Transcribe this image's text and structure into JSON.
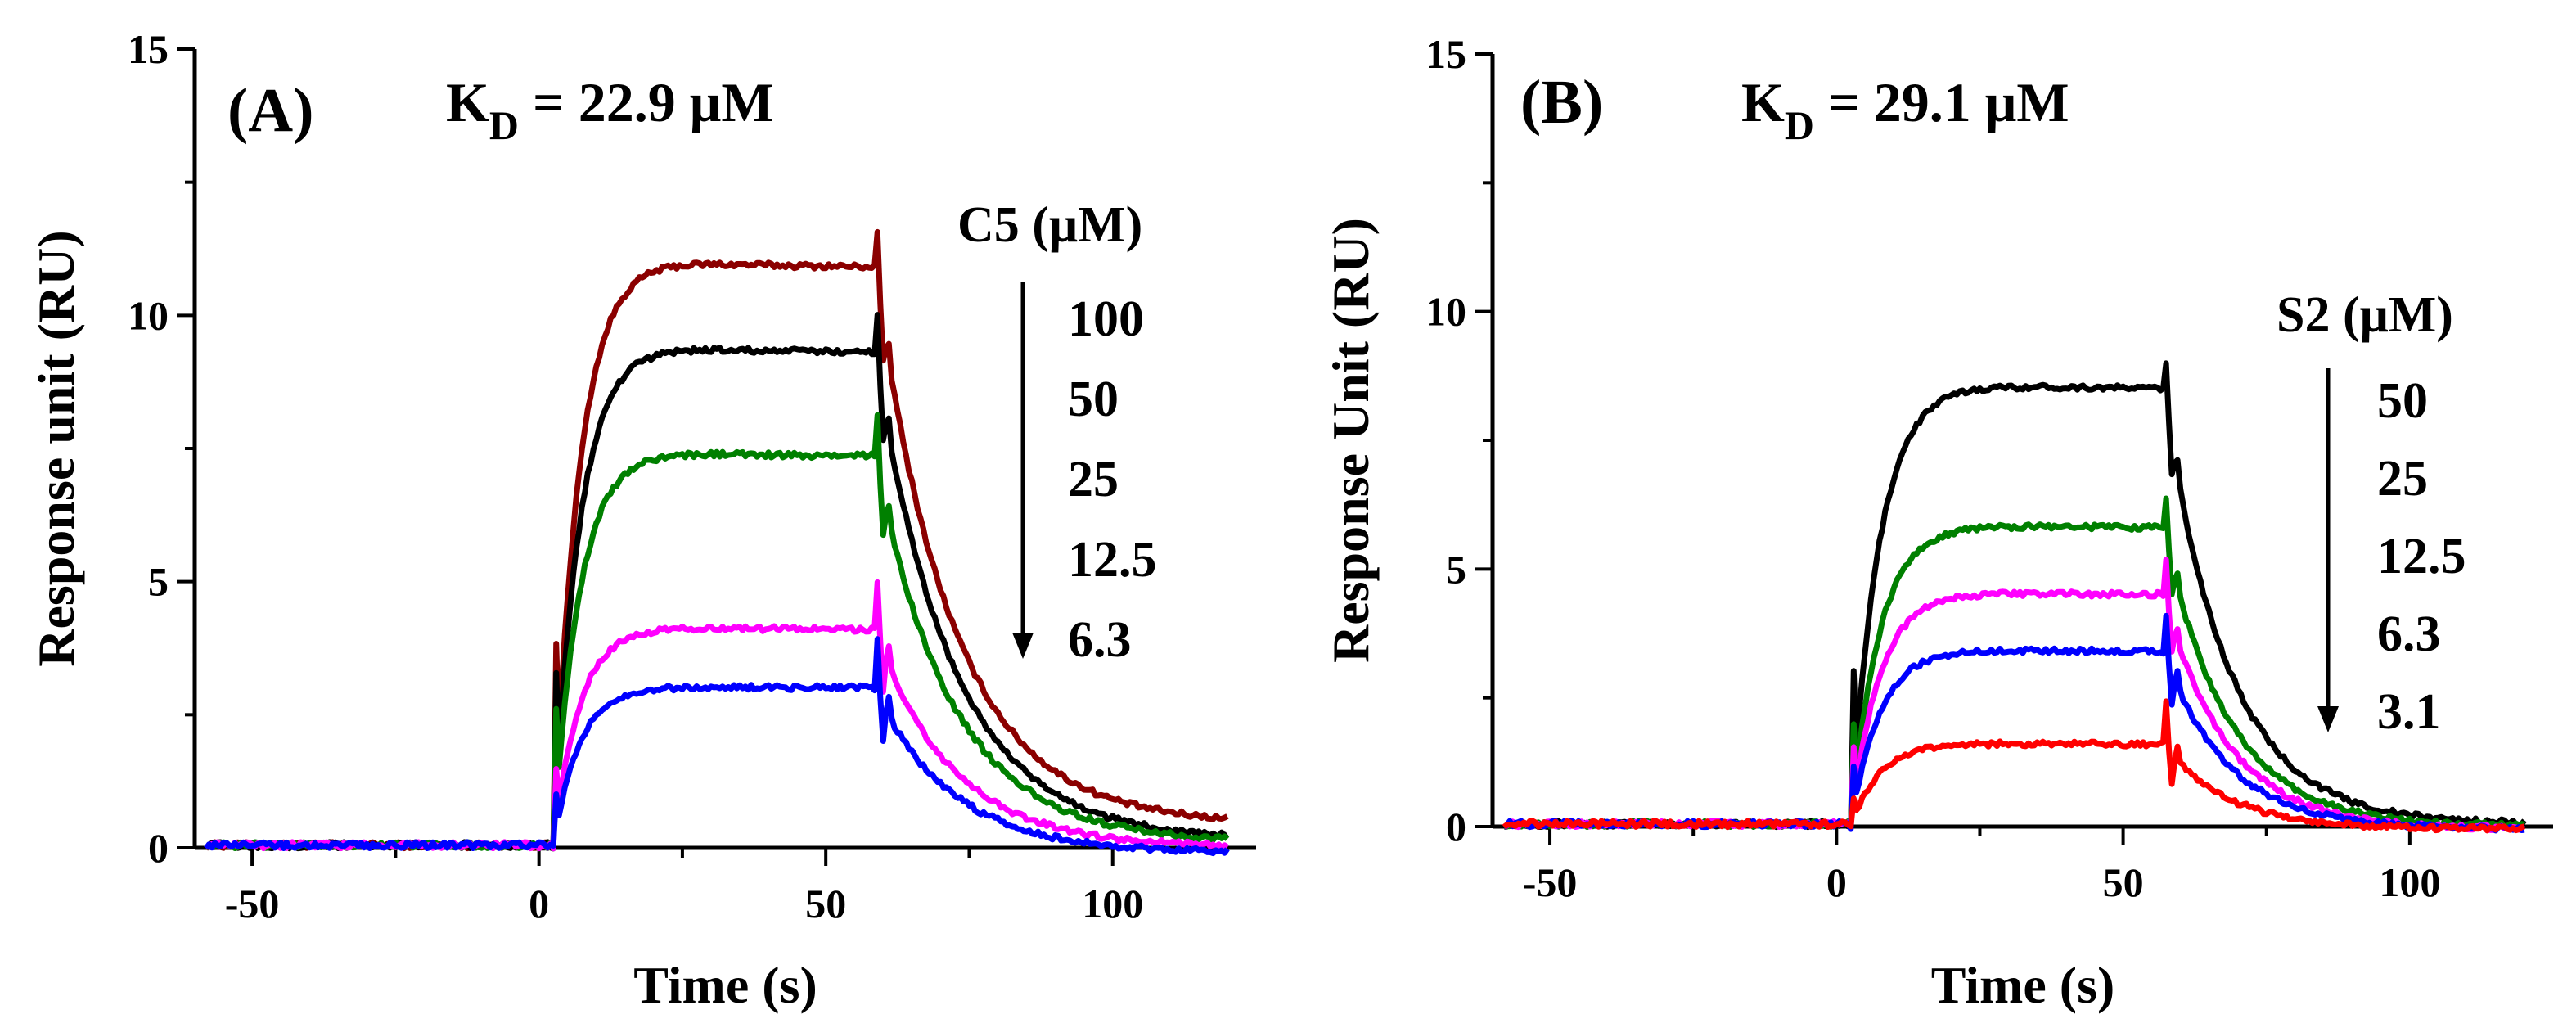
{
  "chart_data": [
    {
      "type": "line",
      "panel_label": "(A)",
      "annotation": {
        "main": "K",
        "sub": "D",
        "rest": " = 22.9 μM"
      },
      "xlabel": "Time (s)",
      "ylabel": "Response unit (RU)",
      "xlim": [
        -60,
        125
      ],
      "ylim": [
        0,
        15
      ],
      "xticks": [
        -50,
        0,
        50,
        100
      ],
      "yticks": [
        0,
        5,
        10,
        15
      ],
      "legend_title": "C5 (μM)",
      "legend_entries": [
        "100",
        "50",
        "25",
        "12.5",
        "6.3"
      ],
      "curve_shape": {
        "inject_time": 2.5,
        "end_time": 58.5,
        "x_end": 120,
        "k_on": 0.22,
        "k_off": 0.075,
        "spike": 1.2
      },
      "series": [
        {
          "concentration": "100",
          "color": "#8b0000",
          "plateau": 10.9,
          "residual": 0.45
        },
        {
          "concentration": "50",
          "color": "#000000",
          "plateau": 9.3,
          "residual": 0.15
        },
        {
          "concentration": "25",
          "color": "#008000",
          "plateau": 7.35,
          "residual": 0.1
        },
        {
          "concentration": "12.5",
          "color": "#ff00ff",
          "plateau": 4.1,
          "residual": 0.0
        },
        {
          "concentration": "6.3",
          "color": "#0000ff",
          "plateau": 3.0,
          "residual": -0.1
        }
      ]
    },
    {
      "type": "line",
      "panel_label": "(B)",
      "annotation": {
        "main": "K",
        "sub": "D",
        "rest": " = 29.1 μM"
      },
      "xlabel": "Time (s)",
      "ylabel": "Response Unit (RU)",
      "xlim": [
        -60,
        125
      ],
      "ylim": [
        0,
        15
      ],
      "xticks": [
        -50,
        0,
        50,
        100
      ],
      "yticks": [
        0,
        5,
        10,
        15
      ],
      "legend_title": "S2 (μM)",
      "legend_entries": [
        "50",
        "25",
        "12.5",
        "6.3",
        "3.1"
      ],
      "curve_shape": {
        "inject_time": 2.5,
        "end_time": 57.0,
        "x_end": 120,
        "k_on": 0.2,
        "k_off": 0.09,
        "spike": 1.0
      },
      "series": [
        {
          "concentration": "50",
          "color": "#000000",
          "plateau": 8.5,
          "residual": 0.05
        },
        {
          "concentration": "25",
          "color": "#008000",
          "plateau": 5.8,
          "residual": 0.0
        },
        {
          "concentration": "12.5",
          "color": "#ff00ff",
          "plateau": 4.5,
          "residual": -0.05
        },
        {
          "concentration": "6.3",
          "color": "#0000ff",
          "plateau": 3.4,
          "residual": -0.05
        },
        {
          "concentration": "3.1",
          "color": "#ff0000",
          "plateau": 1.6,
          "residual": -0.05
        }
      ]
    }
  ]
}
